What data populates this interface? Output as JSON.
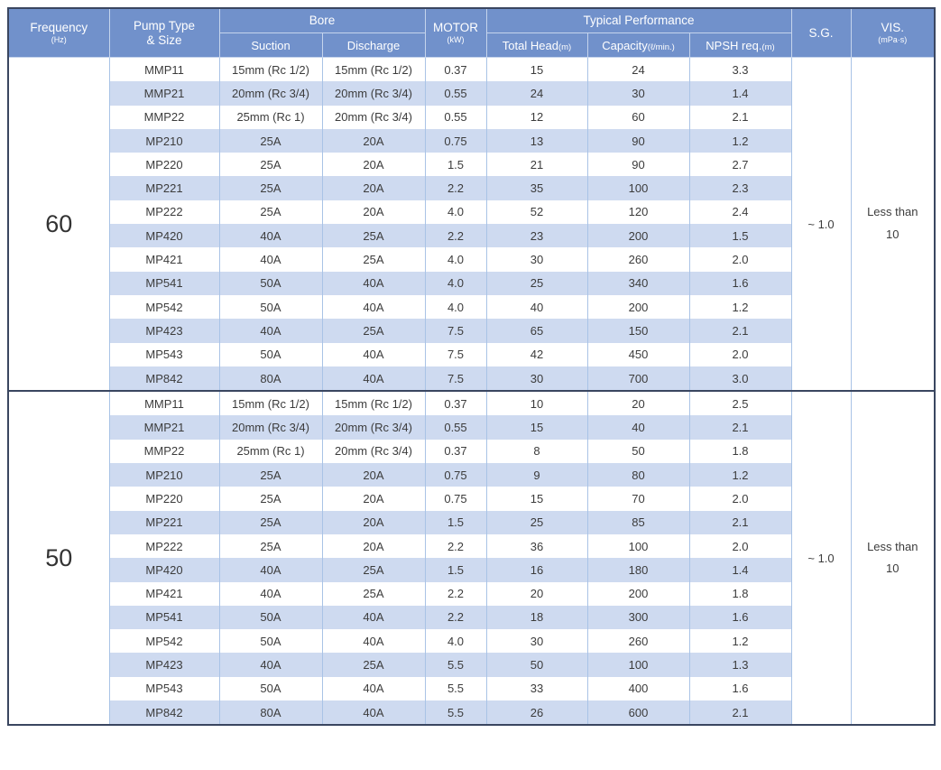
{
  "colors": {
    "header_bg": "#7191cb",
    "header_text": "#ffffff",
    "row_stripe": "#cedaf0",
    "grid_line": "#a9c3e6",
    "outer_border": "#3a4660",
    "body_text": "#3c3c3c"
  },
  "table": {
    "header": {
      "frequency": {
        "main": "Frequency",
        "sub": "(Hz)"
      },
      "pump_type": {
        "line1": "Pump Type",
        "line2": "& Size"
      },
      "bore": {
        "group": "Bore",
        "suction": "Suction",
        "discharge": "Discharge"
      },
      "motor": {
        "main": "MOTOR",
        "sub": "(kW)"
      },
      "performance": {
        "group": "Typical Performance",
        "total_head": {
          "main": "Total Head",
          "unit": "(m)"
        },
        "capacity": {
          "main": "Capacity",
          "unit": "(ℓ/min.)"
        },
        "npsh": {
          "main": "NPSH req.",
          "unit": "(m)"
        }
      },
      "sg": "S.G.",
      "vis": {
        "main": "VIS.",
        "sub": "(mPa·s)"
      }
    },
    "column_keys": [
      "model",
      "suction",
      "discharge",
      "motor_kw",
      "total_head_m",
      "capacity_l_min",
      "npsh_req_m"
    ],
    "sections": [
      {
        "frequency": "60",
        "sg": "~ 1.0",
        "vis_lines": [
          "Less than",
          "10"
        ],
        "rows": [
          [
            "MMP11",
            "15mm (Rc 1/2)",
            "15mm (Rc 1/2)",
            "0.37",
            "15",
            "24",
            "3.3"
          ],
          [
            "MMP21",
            "20mm (Rc 3/4)",
            "20mm (Rc 3/4)",
            "0.55",
            "24",
            "30",
            "1.4"
          ],
          [
            "MMP22",
            "25mm (Rc 1)",
            "20mm (Rc 3/4)",
            "0.55",
            "12",
            "60",
            "2.1"
          ],
          [
            "MP210",
            "25A",
            "20A",
            "0.75",
            "13",
            "90",
            "1.2"
          ],
          [
            "MP220",
            "25A",
            "20A",
            "1.5",
            "21",
            "90",
            "2.7"
          ],
          [
            "MP221",
            "25A",
            "20A",
            "2.2",
            "35",
            "100",
            "2.3"
          ],
          [
            "MP222",
            "25A",
            "20A",
            "4.0",
            "52",
            "120",
            "2.4"
          ],
          [
            "MP420",
            "40A",
            "25A",
            "2.2",
            "23",
            "200",
            "1.5"
          ],
          [
            "MP421",
            "40A",
            "25A",
            "4.0",
            "30",
            "260",
            "2.0"
          ],
          [
            "MP541",
            "50A",
            "40A",
            "4.0",
            "25",
            "340",
            "1.6"
          ],
          [
            "MP542",
            "50A",
            "40A",
            "4.0",
            "40",
            "200",
            "1.2"
          ],
          [
            "MP423",
            "40A",
            "25A",
            "7.5",
            "65",
            "150",
            "2.1"
          ],
          [
            "MP543",
            "50A",
            "40A",
            "7.5",
            "42",
            "450",
            "2.0"
          ],
          [
            "MP842",
            "80A",
            "40A",
            "7.5",
            "30",
            "700",
            "3.0"
          ]
        ]
      },
      {
        "frequency": "50",
        "sg": "~ 1.0",
        "vis_lines": [
          "Less than",
          "10"
        ],
        "rows": [
          [
            "MMP11",
            "15mm (Rc 1/2)",
            "15mm (Rc 1/2)",
            "0.37",
            "10",
            "20",
            "2.5"
          ],
          [
            "MMP21",
            "20mm (Rc 3/4)",
            "20mm (Rc 3/4)",
            "0.55",
            "15",
            "40",
            "2.1"
          ],
          [
            "MMP22",
            "25mm (Rc 1)",
            "20mm (Rc 3/4)",
            "0.37",
            "8",
            "50",
            "1.8"
          ],
          [
            "MP210",
            "25A",
            "20A",
            "0.75",
            "9",
            "80",
            "1.2"
          ],
          [
            "MP220",
            "25A",
            "20A",
            "0.75",
            "15",
            "70",
            "2.0"
          ],
          [
            "MP221",
            "25A",
            "20A",
            "1.5",
            "25",
            "85",
            "2.1"
          ],
          [
            "MP222",
            "25A",
            "20A",
            "2.2",
            "36",
            "100",
            "2.0"
          ],
          [
            "MP420",
            "40A",
            "25A",
            "1.5",
            "16",
            "180",
            "1.4"
          ],
          [
            "MP421",
            "40A",
            "25A",
            "2.2",
            "20",
            "200",
            "1.8"
          ],
          [
            "MP541",
            "50A",
            "40A",
            "2.2",
            "18",
            "300",
            "1.6"
          ],
          [
            "MP542",
            "50A",
            "40A",
            "4.0",
            "30",
            "260",
            "1.2"
          ],
          [
            "MP423",
            "40A",
            "25A",
            "5.5",
            "50",
            "100",
            "1.3"
          ],
          [
            "MP543",
            "50A",
            "40A",
            "5.5",
            "33",
            "400",
            "1.6"
          ],
          [
            "MP842",
            "80A",
            "40A",
            "5.5",
            "26",
            "600",
            "2.1"
          ]
        ]
      }
    ]
  }
}
